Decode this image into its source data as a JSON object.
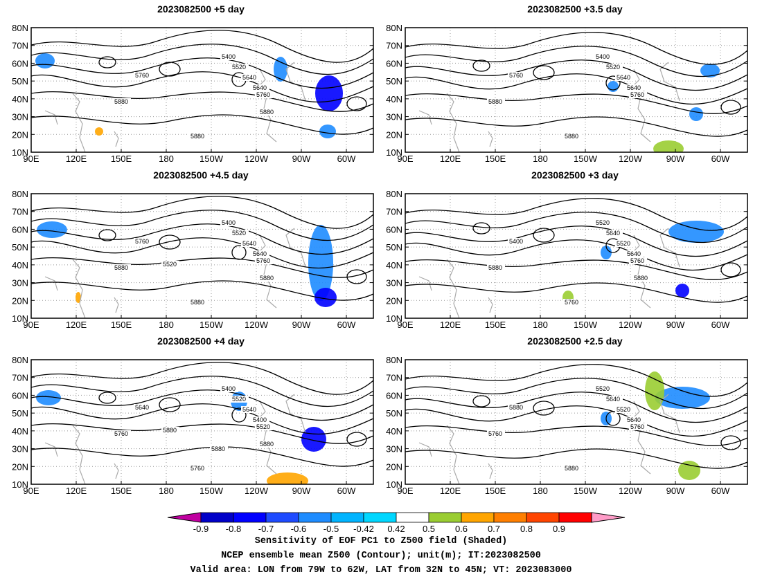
{
  "panels": [
    {
      "title": "2023082500 +5 day",
      "contour_labels": [
        "5400",
        "5520",
        "5640",
        "5640",
        "5760",
        "5760",
        "5880",
        "5880",
        "5880"
      ]
    },
    {
      "title": "2023082500 +3.5 day",
      "contour_labels": [
        "5400",
        "5520",
        "5640",
        "5640",
        "5760",
        "5760",
        "5880",
        "5880"
      ]
    },
    {
      "title": "2023082500 +4.5 day",
      "contour_labels": [
        "5400",
        "5520",
        "5640",
        "5640",
        "5760",
        "5760",
        "5880",
        "5880",
        "5880",
        "5520"
      ]
    },
    {
      "title": "2023082500 +3 day",
      "contour_labels": [
        "5520",
        "5640",
        "5520",
        "5640",
        "5760",
        "5400",
        "5880",
        "5760",
        "5880"
      ]
    },
    {
      "title": "2023082500 +4 day",
      "contour_labels": [
        "5400",
        "5520",
        "5640",
        "5400",
        "5520",
        "5640",
        "5760",
        "5760",
        "5880",
        "5880",
        "5880"
      ]
    },
    {
      "title": "2023082500 +2.5 day",
      "contour_labels": [
        "5520",
        "5640",
        "5520",
        "5640",
        "5760",
        "5880",
        "5760",
        "5880"
      ]
    }
  ],
  "axes": {
    "lat_labels": [
      "80N",
      "70N",
      "60N",
      "50N",
      "40N",
      "30N",
      "20N",
      "10N"
    ],
    "lon_labels": [
      "90E",
      "120E",
      "150E",
      "180",
      "150W",
      "120W",
      "90W",
      "60W"
    ]
  },
  "colorbar": {
    "tick_labels": [
      "-0.9",
      "-0.8",
      "-0.7",
      "-0.6",
      "-0.5",
      "-0.42",
      "0.42",
      "0.5",
      "0.6",
      "0.7",
      "0.8",
      "0.9"
    ],
    "colors": [
      "#c000a0",
      "#0000c8",
      "#0000ff",
      "#1e4bff",
      "#1e8cff",
      "#00b4ff",
      "#00d7ff",
      "#ffffff",
      "#9acd32",
      "#ffa500",
      "#ff7f00",
      "#ff4500",
      "#ff0000",
      "#ff9cc8"
    ]
  },
  "caption": {
    "line1": "Sensitivity of EOF PC1 to Z500 field (Shaded)",
    "line2": "NCEP ensemble mean Z500 (Contour); unit(m); IT:2023082500",
    "line3": "Valid area: LON from 79W to 62W, LAT from 32N to 45N; VT: 2023083000"
  }
}
